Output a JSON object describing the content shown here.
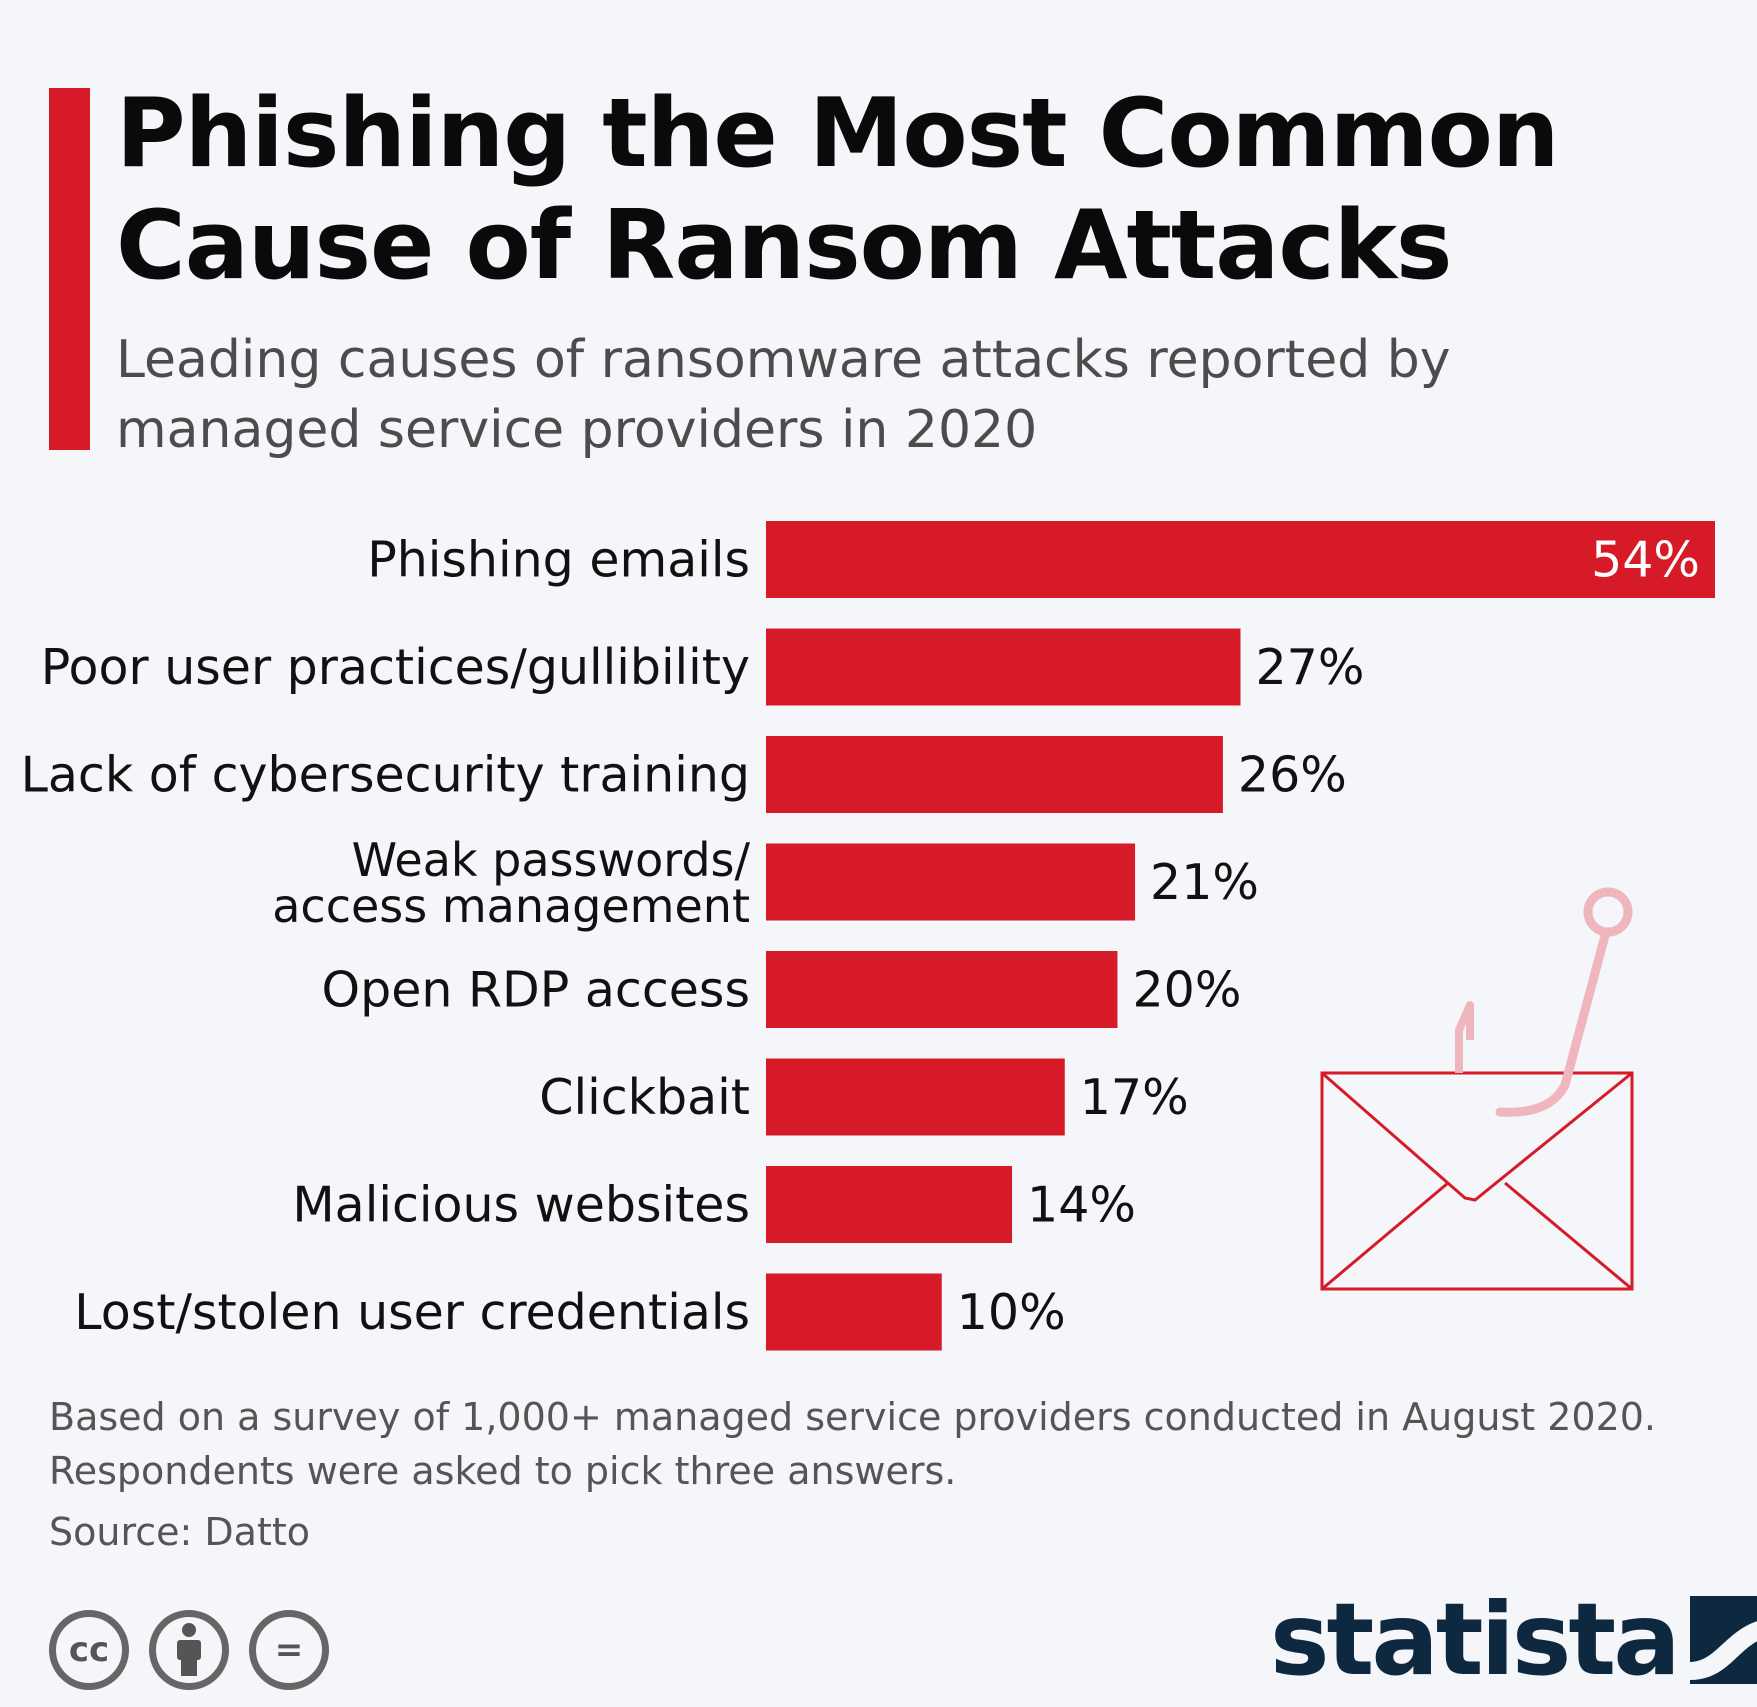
{
  "header": {
    "title": "Phishing the Most Common Cause of Ransom Attacks",
    "subtitle": "Leading causes of ransomware attacks reported by managed service providers in 2020"
  },
  "colors": {
    "accent": "#d71a28",
    "background": "#f4f6f9",
    "brand": "#0e2840",
    "illustration": "#d71a28",
    "hook": "#f0b6be"
  },
  "chart_data": {
    "type": "bar",
    "orientation": "horizontal",
    "categories": [
      [
        "Phishing emails"
      ],
      [
        "Poor user practices/gullibility"
      ],
      [
        "Lack of cybersecurity training"
      ],
      [
        "Weak passwords/",
        "access management"
      ],
      [
        "Open RDP access"
      ],
      [
        "Clickbait"
      ],
      [
        "Malicious websites"
      ],
      [
        "Lost/stolen user credentials"
      ]
    ],
    "values": [
      54,
      27,
      26,
      21,
      20,
      17,
      14,
      10
    ],
    "value_labels": [
      "54%",
      "27%",
      "26%",
      "21%",
      "20%",
      "17%",
      "14%",
      "10%"
    ],
    "unit": "%",
    "xlim": [
      0,
      54
    ],
    "grid": false,
    "legend": "none"
  },
  "illustration": {
    "icon": "envelope-with-fishhook-icon"
  },
  "footer": {
    "note_line1": "Based on a survey of 1,000+ managed service providers conducted in August 2020.",
    "note_line2": "Respondents were asked to pick three answers.",
    "source": "Source: Datto",
    "license_icons": [
      "cc-icon",
      "attribution-icon",
      "no-derivatives-icon"
    ],
    "cc_glyph": "cc",
    "nd_glyph": "=",
    "brand": "statista"
  }
}
